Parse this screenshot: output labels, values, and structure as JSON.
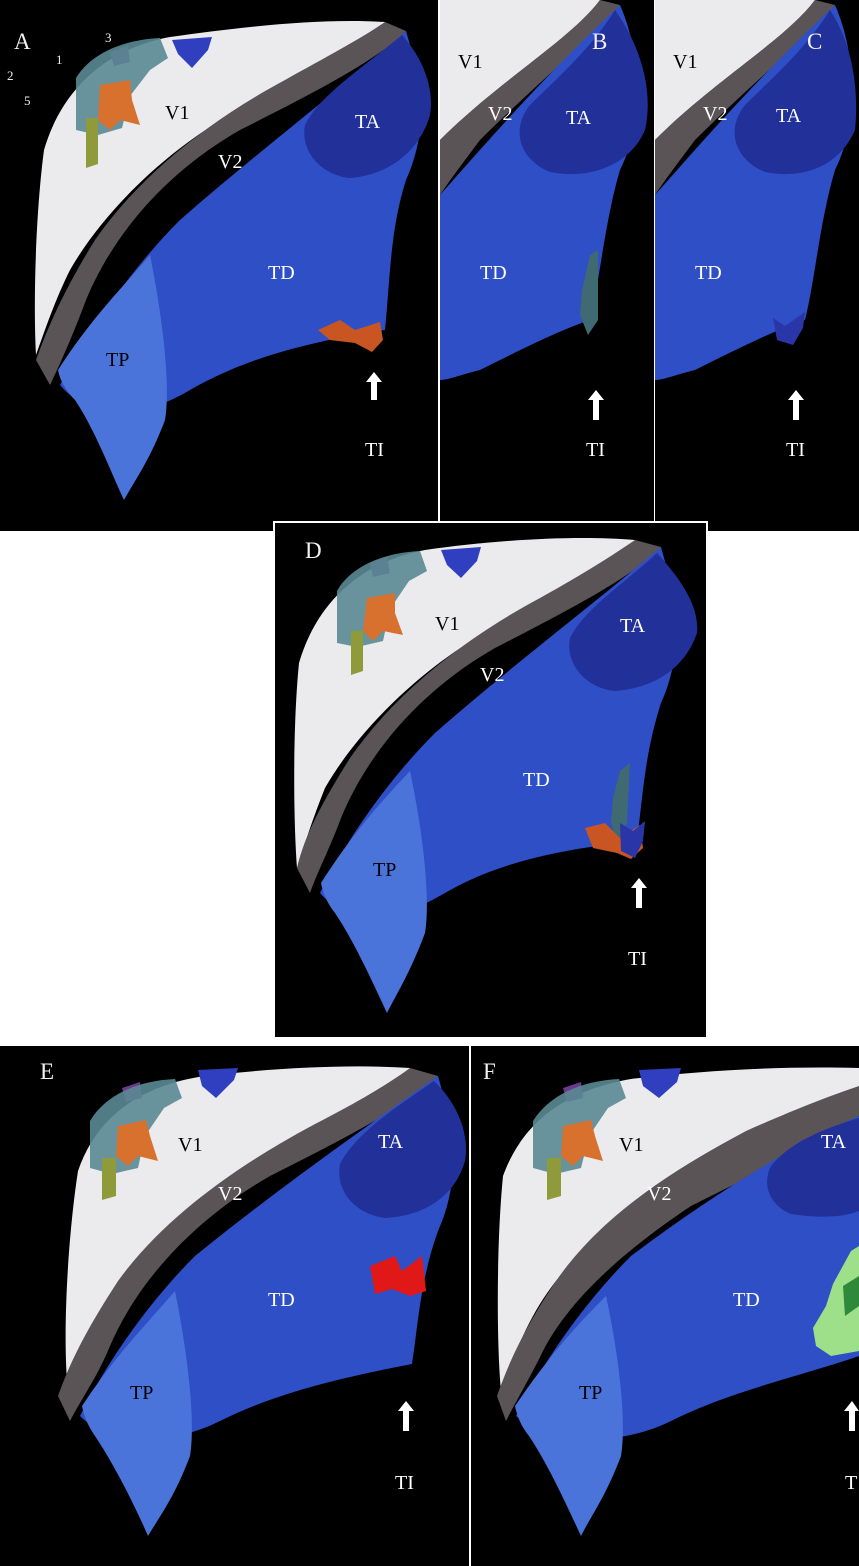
{
  "figure": {
    "panels": [
      {
        "letter": "A",
        "labels": {
          "v1": "V1",
          "v2": "V2",
          "ta": "TA",
          "td": "TD",
          "tp": "TP",
          "ti": "TI"
        },
        "markers": [
          "1",
          "2",
          "3",
          "5"
        ]
      },
      {
        "letter": "B",
        "labels": {
          "v1": "V1",
          "v2": "V2",
          "ta": "TA",
          "td": "TD",
          "ti": "TI"
        }
      },
      {
        "letter": "C",
        "labels": {
          "v1": "V1",
          "v2": "V2",
          "ta": "TA",
          "td": "TD",
          "ti": "TI"
        }
      },
      {
        "letter": "D",
        "labels": {
          "v1": "V1",
          "v2": "V2",
          "ta": "TA",
          "td": "TD",
          "tp": "TP",
          "ti": "TI"
        }
      },
      {
        "letter": "E",
        "labels": {
          "v1": "V1",
          "v2": "V2",
          "ta": "TA",
          "td": "TD",
          "tp": "TP",
          "ti": "TI"
        }
      },
      {
        "letter": "F",
        "labels": {
          "v1": "V1",
          "v2": "V2",
          "ta": "TA",
          "td": "TD",
          "tp": "TP",
          "ti": "T"
        }
      }
    ]
  },
  "colors": {
    "background": "#000000",
    "v1": "#ebebee",
    "v2": "#5a5457",
    "ta": "#22319a",
    "td": "#2f4fc6",
    "tp": "#4a74da",
    "teal_patch": "#5a8a94",
    "orange_patch": "#d8702e",
    "olive_patch": "#8f9a3a",
    "blue_patch": "#2f3fbf",
    "purple_patch": "#6a3a8c",
    "red_patch": "#e01818",
    "green_patch": "#9ee08a"
  }
}
